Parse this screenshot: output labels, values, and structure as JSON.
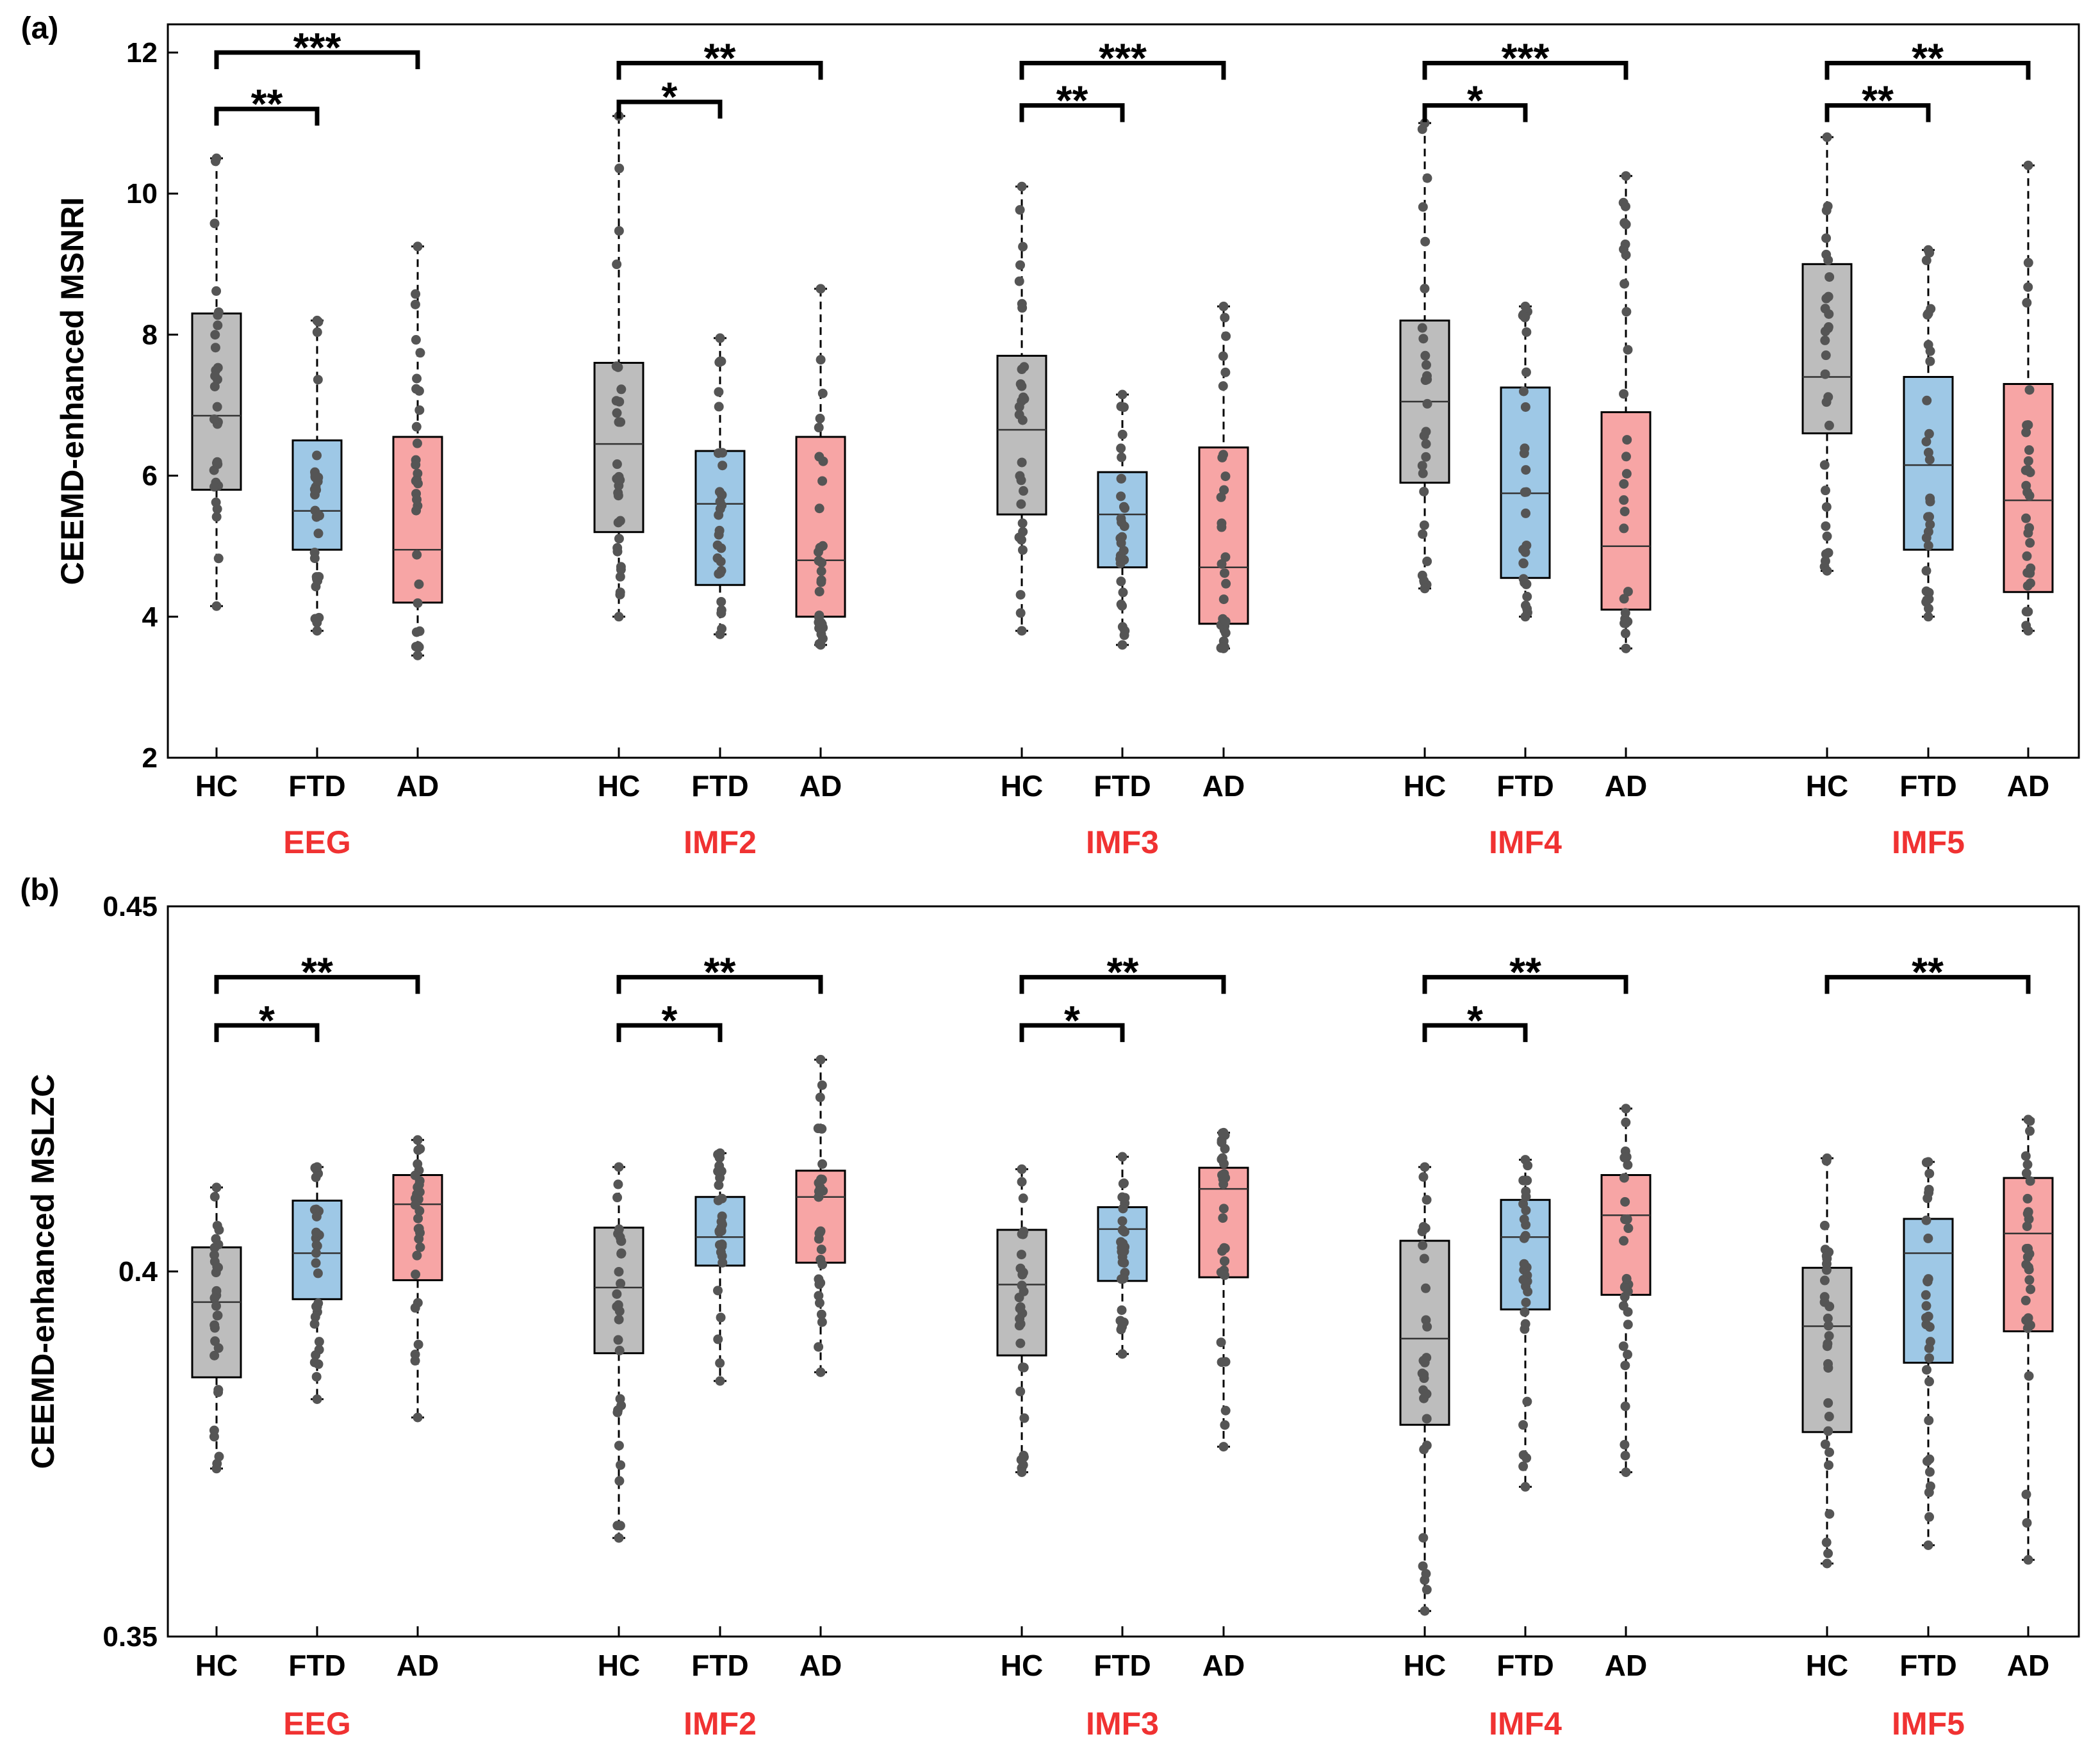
{
  "colors": {
    "HC": "#bdbdbd",
    "FTD": "#9ec8e6",
    "AD": "#f7a5a5",
    "group_label": "#f03232",
    "points": "#555555",
    "axis": "#000000"
  },
  "chart_data": [
    {
      "type": "box",
      "panel_label": "(a)",
      "ylabel": "CEEMD-enhanced MSNRI",
      "ylim": [
        2,
        12.4
      ],
      "yticks": [
        2,
        4,
        6,
        8,
        10,
        12
      ],
      "ytick_labels": [
        "2",
        "4",
        "6",
        "8",
        "10",
        "12"
      ],
      "categories": [
        "HC",
        "FTD",
        "AD"
      ],
      "groups": [
        {
          "label": "EEG",
          "boxes": [
            {
              "cat": "HC",
              "whisker_low": 4.15,
              "q1": 5.8,
              "median": 6.85,
              "q3": 8.3,
              "whisker_high": 10.5
            },
            {
              "cat": "FTD",
              "whisker_low": 3.8,
              "q1": 4.95,
              "median": 5.5,
              "q3": 6.5,
              "whisker_high": 8.2
            },
            {
              "cat": "AD",
              "whisker_low": 3.45,
              "q1": 4.2,
              "median": 4.95,
              "q3": 6.55,
              "whisker_high": 9.25
            }
          ],
          "sig": [
            {
              "from": "HC",
              "to": "FTD",
              "y": 11.2,
              "label": "**"
            },
            {
              "from": "HC",
              "to": "AD",
              "y": 12.0,
              "label": "***"
            }
          ]
        },
        {
          "label": "IMF2",
          "boxes": [
            {
              "cat": "HC",
              "whisker_low": 4.0,
              "q1": 5.2,
              "median": 6.45,
              "q3": 7.6,
              "whisker_high": 11.1
            },
            {
              "cat": "FTD",
              "whisker_low": 3.75,
              "q1": 4.45,
              "median": 5.6,
              "q3": 6.35,
              "whisker_high": 7.95
            },
            {
              "cat": "AD",
              "whisker_low": 3.6,
              "q1": 4.0,
              "median": 4.8,
              "q3": 6.55,
              "whisker_high": 8.65
            }
          ],
          "sig": [
            {
              "from": "HC",
              "to": "FTD",
              "y": 11.3,
              "label": "*"
            },
            {
              "from": "HC",
              "to": "AD",
              "y": 11.85,
              "label": "**"
            }
          ]
        },
        {
          "label": "IMF3",
          "boxes": [
            {
              "cat": "HC",
              "whisker_low": 3.8,
              "q1": 5.45,
              "median": 6.65,
              "q3": 7.7,
              "whisker_high": 10.1
            },
            {
              "cat": "FTD",
              "whisker_low": 3.6,
              "q1": 4.7,
              "median": 5.45,
              "q3": 6.05,
              "whisker_high": 7.15
            },
            {
              "cat": "AD",
              "whisker_low": 3.55,
              "q1": 3.9,
              "median": 4.7,
              "q3": 6.4,
              "whisker_high": 8.4
            }
          ],
          "sig": [
            {
              "from": "HC",
              "to": "FTD",
              "y": 11.25,
              "label": "**"
            },
            {
              "from": "HC",
              "to": "AD",
              "y": 11.85,
              "label": "***"
            }
          ]
        },
        {
          "label": "IMF4",
          "boxes": [
            {
              "cat": "HC",
              "whisker_low": 4.4,
              "q1": 5.9,
              "median": 7.05,
              "q3": 8.2,
              "whisker_high": 11.0
            },
            {
              "cat": "FTD",
              "whisker_low": 4.0,
              "q1": 4.55,
              "median": 5.75,
              "q3": 7.25,
              "whisker_high": 8.4
            },
            {
              "cat": "AD",
              "whisker_low": 3.55,
              "q1": 4.1,
              "median": 5.0,
              "q3": 6.9,
              "whisker_high": 10.25
            }
          ],
          "sig": [
            {
              "from": "HC",
              "to": "FTD",
              "y": 11.25,
              "label": "*"
            },
            {
              "from": "HC",
              "to": "AD",
              "y": 11.85,
              "label": "***"
            }
          ]
        },
        {
          "label": "IMF5",
          "boxes": [
            {
              "cat": "HC",
              "whisker_low": 4.65,
              "q1": 6.6,
              "median": 7.4,
              "q3": 9.0,
              "whisker_high": 10.8
            },
            {
              "cat": "FTD",
              "whisker_low": 4.0,
              "q1": 4.95,
              "median": 6.15,
              "q3": 7.4,
              "whisker_high": 9.2
            },
            {
              "cat": "AD",
              "whisker_low": 3.8,
              "q1": 4.35,
              "median": 5.65,
              "q3": 7.3,
              "whisker_high": 10.4
            }
          ],
          "sig": [
            {
              "from": "HC",
              "to": "FTD",
              "y": 11.25,
              "label": "**"
            },
            {
              "from": "HC",
              "to": "AD",
              "y": 11.85,
              "label": "**"
            }
          ]
        }
      ]
    },
    {
      "type": "box",
      "panel_label": "(b)",
      "ylabel": "CEEMD-enhanced MSLZC",
      "ylim": [
        0.35,
        0.45
      ],
      "yticks": [
        0.35,
        0.4,
        0.45
      ],
      "ytick_labels": [
        "0.35",
        "0.4",
        "0.45"
      ],
      "categories": [
        "HC",
        "FTD",
        "AD"
      ],
      "groups": [
        {
          "label": "EEG",
          "boxes": [
            {
              "cat": "HC",
              "whisker_low": 0.373,
              "q1": 0.3855,
              "median": 0.3958,
              "q3": 0.4033,
              "whisker_high": 0.4115
            },
            {
              "cat": "FTD",
              "whisker_low": 0.3825,
              "q1": 0.3962,
              "median": 0.4025,
              "q3": 0.4097,
              "whisker_high": 0.4143
            },
            {
              "cat": "AD",
              "whisker_low": 0.38,
              "q1": 0.3988,
              "median": 0.4092,
              "q3": 0.4132,
              "whisker_high": 0.418
            }
          ],
          "sig": [
            {
              "from": "HC",
              "to": "FTD",
              "y": 0.4337,
              "label": "*"
            },
            {
              "from": "HC",
              "to": "AD",
              "y": 0.4403,
              "label": "**"
            }
          ]
        },
        {
          "label": "IMF2",
          "boxes": [
            {
              "cat": "HC",
              "whisker_low": 0.3635,
              "q1": 0.3888,
              "median": 0.3978,
              "q3": 0.406,
              "whisker_high": 0.4143
            },
            {
              "cat": "FTD",
              "whisker_low": 0.385,
              "q1": 0.4008,
              "median": 0.4047,
              "q3": 0.4102,
              "whisker_high": 0.4162
            },
            {
              "cat": "AD",
              "whisker_low": 0.3862,
              "q1": 0.4012,
              "median": 0.4102,
              "q3": 0.4138,
              "whisker_high": 0.429
            }
          ],
          "sig": [
            {
              "from": "HC",
              "to": "FTD",
              "y": 0.4337,
              "label": "*"
            },
            {
              "from": "HC",
              "to": "AD",
              "y": 0.4403,
              "label": "**"
            }
          ]
        },
        {
          "label": "IMF3",
          "boxes": [
            {
              "cat": "HC",
              "whisker_low": 0.3725,
              "q1": 0.3885,
              "median": 0.3982,
              "q3": 0.4057,
              "whisker_high": 0.414
            },
            {
              "cat": "FTD",
              "whisker_low": 0.3887,
              "q1": 0.3987,
              "median": 0.4058,
              "q3": 0.4088,
              "whisker_high": 0.4157
            },
            {
              "cat": "AD",
              "whisker_low": 0.376,
              "q1": 0.3992,
              "median": 0.4113,
              "q3": 0.4142,
              "whisker_high": 0.419
            }
          ],
          "sig": [
            {
              "from": "HC",
              "to": "FTD",
              "y": 0.4337,
              "label": "*"
            },
            {
              "from": "HC",
              "to": "AD",
              "y": 0.4403,
              "label": "**"
            }
          ]
        },
        {
          "label": "IMF4",
          "boxes": [
            {
              "cat": "HC",
              "whisker_low": 0.3535,
              "q1": 0.379,
              "median": 0.3908,
              "q3": 0.4042,
              "whisker_high": 0.4143
            },
            {
              "cat": "FTD",
              "whisker_low": 0.3705,
              "q1": 0.3948,
              "median": 0.4047,
              "q3": 0.4098,
              "whisker_high": 0.4153
            },
            {
              "cat": "AD",
              "whisker_low": 0.3725,
              "q1": 0.3968,
              "median": 0.4077,
              "q3": 0.4132,
              "whisker_high": 0.4223
            }
          ],
          "sig": [
            {
              "from": "HC",
              "to": "FTD",
              "y": 0.4337,
              "label": "*"
            },
            {
              "from": "HC",
              "to": "AD",
              "y": 0.4403,
              "label": "**"
            }
          ]
        },
        {
          "label": "IMF5",
          "boxes": [
            {
              "cat": "HC",
              "whisker_low": 0.36,
              "q1": 0.378,
              "median": 0.3925,
              "q3": 0.4005,
              "whisker_high": 0.4155
            },
            {
              "cat": "FTD",
              "whisker_low": 0.3625,
              "q1": 0.3875,
              "median": 0.4025,
              "q3": 0.4072,
              "whisker_high": 0.415
            },
            {
              "cat": "AD",
              "whisker_low": 0.3605,
              "q1": 0.3918,
              "median": 0.4052,
              "q3": 0.4128,
              "whisker_high": 0.4208
            }
          ],
          "sig": [
            {
              "from": "HC",
              "to": "AD",
              "y": 0.4403,
              "label": "**"
            }
          ]
        }
      ]
    }
  ]
}
